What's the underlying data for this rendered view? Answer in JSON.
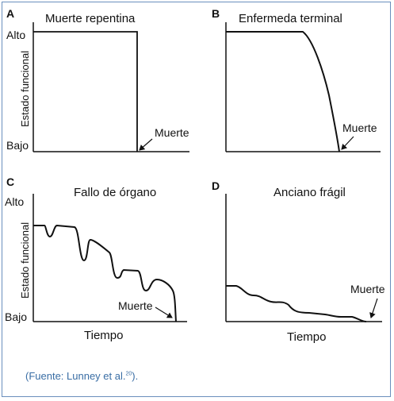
{
  "panels": [
    {
      "letter": "A",
      "title": "Muerte repentina",
      "y_high": "Alto",
      "y_low": "Bajo",
      "ylabel": "Estado funcional",
      "annotation": "Muerte",
      "xlabel": ""
    },
    {
      "letter": "B",
      "title": "Enfermeda terminal",
      "y_high": "",
      "y_low": "",
      "ylabel": "",
      "annotation": "Muerte",
      "xlabel": ""
    },
    {
      "letter": "C",
      "title": "Fallo de órgano",
      "y_high": "Alto",
      "y_low": "Bajo",
      "ylabel": "Estado funcional",
      "annotation": "Muerte",
      "xlabel": "Tiempo"
    },
    {
      "letter": "D",
      "title": "Anciano frágil",
      "y_high": "",
      "y_low": "",
      "ylabel": "",
      "annotation": "Muerte",
      "xlabel": "Tiempo"
    }
  ],
  "source": {
    "prefix": "(Fuente: Lunney et al.",
    "ref": "20",
    "suffix": ")."
  },
  "colors": {
    "border": "#6a8fbd",
    "caption": "#3a6ea5",
    "line": "#111111"
  }
}
